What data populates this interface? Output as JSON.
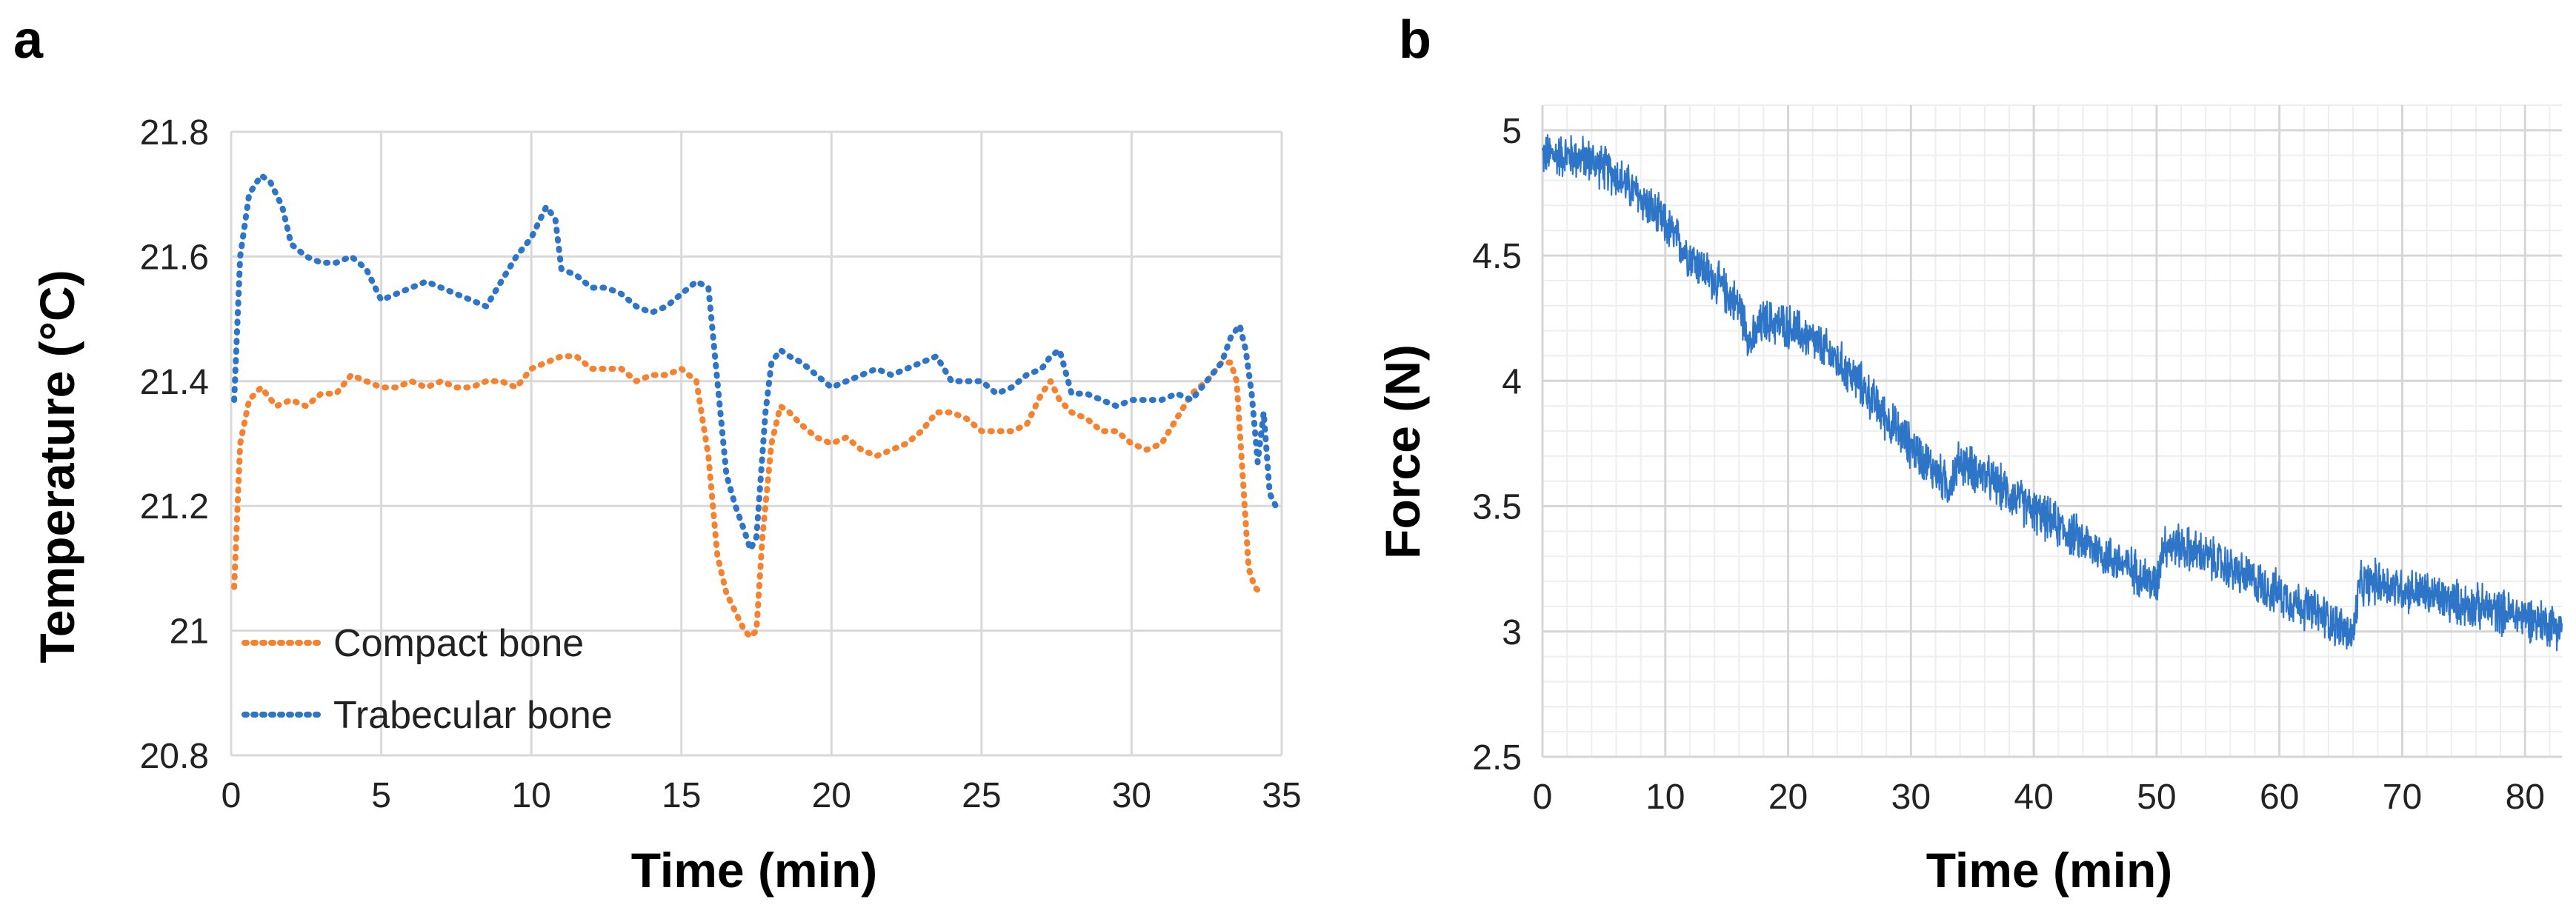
{
  "chart_data": [
    {
      "panel": "a",
      "type": "line",
      "title": "",
      "xlabel": "Time (min)",
      "ylabel": "Temperature (°C)",
      "xlim": [
        0,
        35
      ],
      "ylim": [
        20.8,
        21.8
      ],
      "xticks": [
        "0",
        "5",
        "10",
        "15",
        "20",
        "25",
        "30",
        "35"
      ],
      "yticks": [
        "20.8",
        "21",
        "21.2",
        "21.4",
        "21.6",
        "21.8"
      ],
      "grid": true,
      "legend_position": "bottom-left",
      "series": [
        {
          "name": "Compact bone",
          "color": "#F58231",
          "x": [
            0.1,
            0.3,
            0.6,
            1,
            1.5,
            2,
            2.5,
            3,
            3.5,
            4,
            4.5,
            5,
            5.5,
            6,
            6.5,
            7,
            7.5,
            8,
            8.5,
            9,
            9.5,
            10,
            10.5,
            11,
            11.5,
            12,
            12.5,
            13,
            13.5,
            14,
            14.5,
            15,
            15.5,
            15.9,
            16.2,
            16.5,
            16.8,
            17.1,
            17.3,
            17.5,
            17.7,
            18,
            18.3,
            18.6,
            19,
            19.5,
            20,
            20.5,
            21,
            21.5,
            22,
            22.5,
            23,
            23.5,
            24,
            24.5,
            25,
            25.5,
            26,
            26.5,
            27,
            27.3,
            27.6,
            28,
            28.5,
            29,
            29.5,
            30,
            30.5,
            31,
            31.5,
            32,
            32.5,
            33,
            33.3,
            33.5,
            33.7,
            33.9,
            34.1,
            34.3
          ],
          "values": [
            21.07,
            21.3,
            21.37,
            21.39,
            21.36,
            21.37,
            21.36,
            21.38,
            21.38,
            21.41,
            21.4,
            21.39,
            21.39,
            21.4,
            21.39,
            21.4,
            21.39,
            21.39,
            21.4,
            21.4,
            21.39,
            21.42,
            21.43,
            21.44,
            21.44,
            21.42,
            21.42,
            21.42,
            21.4,
            21.41,
            21.41,
            21.42,
            21.4,
            21.28,
            21.12,
            21.06,
            21.03,
            21.0,
            20.99,
            21.0,
            21.15,
            21.3,
            21.36,
            21.35,
            21.33,
            21.31,
            21.3,
            21.31,
            21.29,
            21.28,
            21.29,
            21.3,
            21.32,
            21.35,
            21.35,
            21.34,
            21.32,
            21.32,
            21.32,
            21.33,
            21.38,
            21.4,
            21.37,
            21.35,
            21.34,
            21.32,
            21.32,
            21.3,
            21.29,
            21.3,
            21.34,
            21.38,
            21.4,
            21.43,
            21.43,
            21.4,
            21.25,
            21.1,
            21.07,
            21.06
          ]
        },
        {
          "name": "Trabecular bone",
          "color": "#2E75C8",
          "x": [
            0.1,
            0.3,
            0.6,
            1,
            1.3,
            1.7,
            2,
            2.5,
            3,
            3.5,
            4,
            4.5,
            5,
            5.5,
            6,
            6.5,
            7,
            7.5,
            8,
            8.5,
            9,
            9.5,
            10,
            10.5,
            10.8,
            11,
            11.5,
            12,
            12.5,
            13,
            13.5,
            14,
            14.5,
            15,
            15.5,
            15.9,
            16.2,
            16.5,
            16.8,
            17.1,
            17.3,
            17.5,
            17.8,
            18,
            18.3,
            18.6,
            19,
            19.5,
            20,
            20.5,
            21,
            21.5,
            22,
            22.5,
            23,
            23.5,
            24,
            24.5,
            25,
            25.5,
            26,
            26.5,
            27,
            27.3,
            27.6,
            28,
            28.5,
            29,
            29.5,
            30,
            30.5,
            31,
            31.5,
            32,
            32.5,
            33,
            33.3,
            33.6,
            33.8,
            34,
            34.2,
            34.4,
            34.6,
            34.8
          ],
          "values": [
            21.37,
            21.6,
            21.7,
            21.73,
            21.72,
            21.68,
            21.62,
            21.6,
            21.59,
            21.59,
            21.6,
            21.58,
            21.53,
            21.54,
            21.55,
            21.56,
            21.55,
            21.54,
            21.53,
            21.52,
            21.56,
            21.6,
            21.63,
            21.68,
            21.66,
            21.58,
            21.57,
            21.55,
            21.55,
            21.54,
            21.52,
            21.51,
            21.52,
            21.54,
            21.56,
            21.55,
            21.4,
            21.25,
            21.2,
            21.16,
            21.13,
            21.15,
            21.35,
            21.43,
            21.45,
            21.44,
            21.43,
            21.41,
            21.39,
            21.4,
            21.41,
            21.42,
            21.41,
            21.42,
            21.43,
            21.44,
            21.4,
            21.4,
            21.4,
            21.38,
            21.39,
            21.41,
            21.42,
            21.44,
            21.45,
            21.38,
            21.38,
            21.37,
            21.36,
            21.37,
            21.37,
            21.37,
            21.38,
            21.37,
            21.4,
            21.43,
            21.47,
            21.49,
            21.45,
            21.38,
            21.27,
            21.35,
            21.22,
            21.2
          ]
        }
      ]
    },
    {
      "panel": "b",
      "type": "line",
      "title": "",
      "xlabel": "Time (min)",
      "ylabel": "Force (N)",
      "xlim": [
        0,
        83
      ],
      "ylim": [
        2.5,
        5.1
      ],
      "xticks": [
        "0",
        "10",
        "20",
        "30",
        "40",
        "50",
        "60",
        "70",
        "80"
      ],
      "yticks": [
        "2.5",
        "3",
        "3.5",
        "4",
        "4.5",
        "5"
      ],
      "grid": true,
      "minor_grid": true,
      "series": [
        {
          "name": "Force",
          "color": "#2E75C8",
          "x": [
            0,
            2,
            4,
            6,
            8,
            10,
            12,
            14,
            16,
            17,
            18,
            20,
            22,
            24,
            26,
            28,
            30,
            32,
            33,
            34,
            36,
            38,
            40,
            42,
            44,
            46,
            48,
            50,
            50.5,
            52,
            54,
            56,
            58,
            60,
            62,
            64,
            66,
            66.5,
            68,
            70,
            72,
            74,
            76,
            78,
            80,
            82,
            83
          ],
          "values": [
            4.9,
            4.9,
            4.88,
            4.82,
            4.73,
            4.62,
            4.5,
            4.4,
            4.3,
            4.15,
            4.24,
            4.22,
            4.16,
            4.08,
            3.98,
            3.85,
            3.74,
            3.64,
            3.58,
            3.68,
            3.62,
            3.55,
            3.48,
            3.42,
            3.36,
            3.3,
            3.25,
            3.18,
            3.35,
            3.34,
            3.3,
            3.25,
            3.2,
            3.15,
            3.1,
            3.05,
            2.98,
            3.18,
            3.2,
            3.17,
            3.15,
            3.12,
            3.1,
            3.08,
            3.06,
            3.03,
            3.02
          ],
          "noise_amplitude": 0.07
        }
      ]
    }
  ],
  "panels": {
    "a": {
      "label": "a"
    },
    "b": {
      "label": "b"
    }
  }
}
